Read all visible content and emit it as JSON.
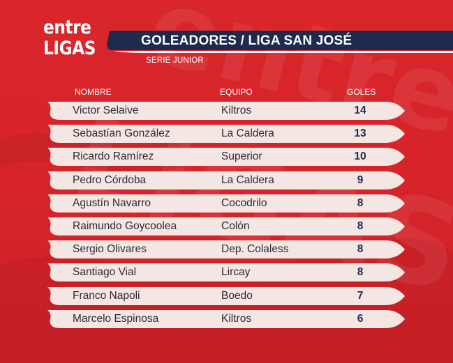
{
  "brand": {
    "line1": "entre",
    "line2": "LIGAS"
  },
  "title": "GOLEADORES / LIGA SAN JOSÉ",
  "subtitle": "SERIE JUNIOR",
  "columns": {
    "name": "NOMBRE",
    "team": "EQUIPO",
    "goals": "GOLES"
  },
  "rows": [
    {
      "name": "Victor Selaive",
      "team": "Kiltros",
      "goals": "14"
    },
    {
      "name": "Sebastían González",
      "team": "La Caldera",
      "goals": "13"
    },
    {
      "name": "Ricardo Ramírez",
      "team": "Superior",
      "goals": "10"
    },
    {
      "name": "Pedro Córdoba",
      "team": "La Caldera",
      "goals": "9"
    },
    {
      "name": "Agustín Navarro",
      "team": "Cocodrilo",
      "goals": "8"
    },
    {
      "name": "Raimundo Goycoolea",
      "team": "Colón",
      "goals": "8"
    },
    {
      "name": "Sergio Olivares",
      "team": "Dep. Colaless",
      "goals": "8"
    },
    {
      "name": "Santiago Vial",
      "team": "Lircay",
      "goals": "8"
    },
    {
      "name": "Franco Napoli",
      "team": "Boedo",
      "goals": "7"
    },
    {
      "name": "Marcelo Espinosa",
      "team": "Kiltros",
      "goals": "6"
    }
  ],
  "colors": {
    "background": "#d9262b",
    "title_bar": "#1e2a4e",
    "title_stripe": "#ffffff",
    "row": "#f4e6e3",
    "goals_text": "#1f2a4d"
  }
}
